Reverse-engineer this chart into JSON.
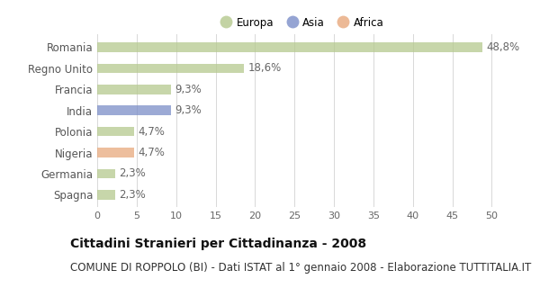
{
  "categories": [
    "Romania",
    "Regno Unito",
    "Francia",
    "India",
    "Polonia",
    "Nigeria",
    "Germania",
    "Spagna"
  ],
  "values": [
    48.8,
    18.6,
    9.3,
    9.3,
    4.7,
    4.7,
    2.3,
    2.3
  ],
  "labels": [
    "48,8%",
    "18,6%",
    "9,3%",
    "9,3%",
    "4,7%",
    "4,7%",
    "2,3%",
    "2,3%"
  ],
  "colors": [
    "#b5c98e",
    "#b5c98e",
    "#b5c98e",
    "#7b8ec8",
    "#b5c98e",
    "#e8a87c",
    "#b5c98e",
    "#b5c98e"
  ],
  "legend": [
    {
      "label": "Europa",
      "color": "#b5c98e"
    },
    {
      "label": "Asia",
      "color": "#7b8ec8"
    },
    {
      "label": "Africa",
      "color": "#e8a87c"
    }
  ],
  "xlim": [
    0,
    52
  ],
  "xticks": [
    0,
    5,
    10,
    15,
    20,
    25,
    30,
    35,
    40,
    45,
    50
  ],
  "title": "Cittadini Stranieri per Cittadinanza - 2008",
  "subtitle": "COMUNE DI ROPPOLO (BI) - Dati ISTAT al 1° gennaio 2008 - Elaborazione TUTTITALIA.IT",
  "bg_color": "#ffffff",
  "grid_color": "#d8d8d8",
  "bar_height": 0.45,
  "title_fontsize": 10,
  "subtitle_fontsize": 8.5,
  "label_fontsize": 8.5,
  "tick_fontsize": 8,
  "ylabel_fontsize": 8.5
}
